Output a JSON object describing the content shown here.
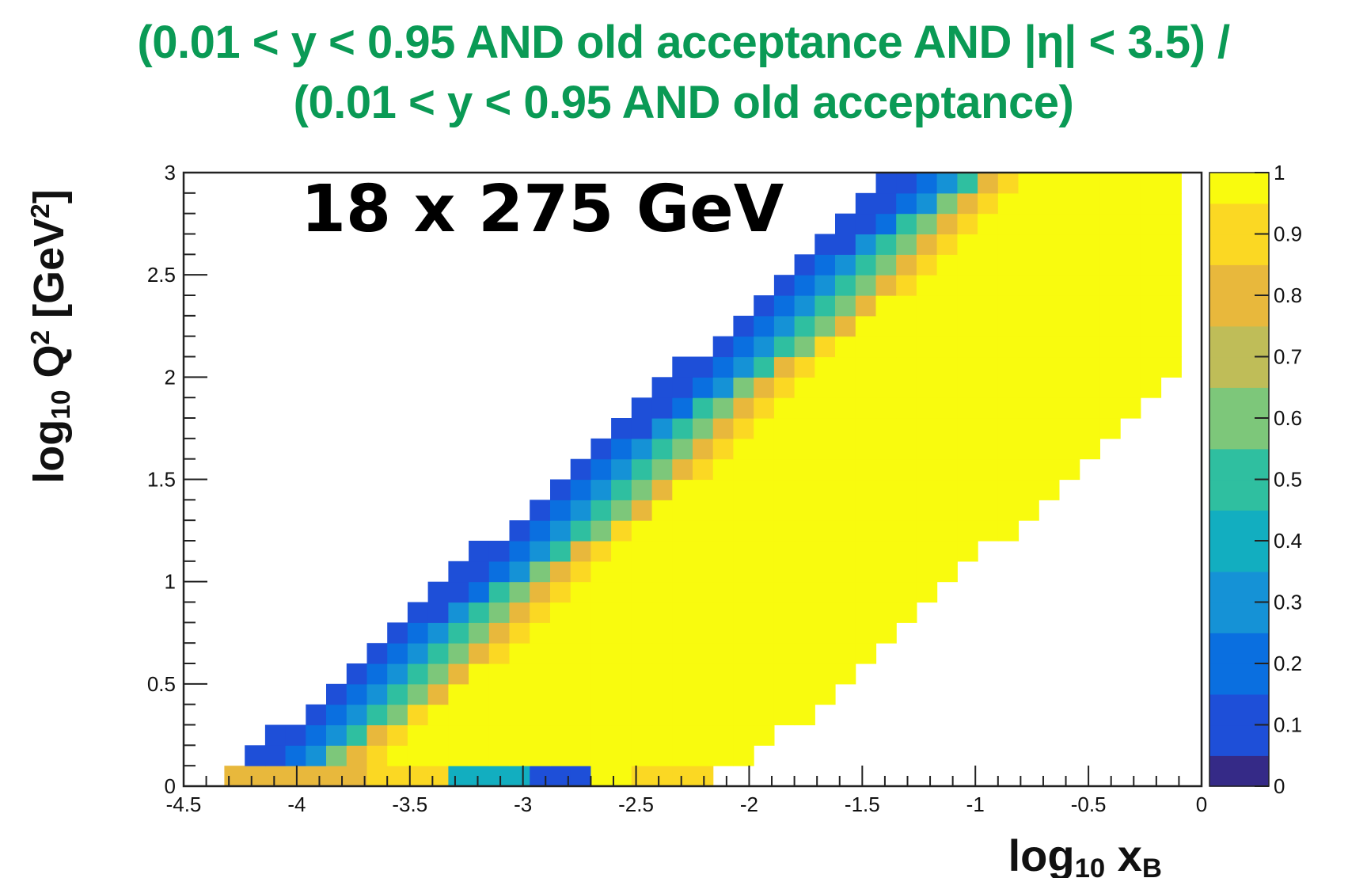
{
  "chart_data": {
    "type": "heatmap",
    "title_lines": [
      "(0.01 < y < 0.95 AND old acceptance AND |η| < 3.5) /",
      "(0.01 < y < 0.95 AND old acceptance)"
    ],
    "annotation": "18 x 275 GeV",
    "xlabel": {
      "prefix": "log",
      "sub": "10",
      "var": " x",
      "var_sub": "B"
    },
    "ylabel": {
      "prefix": "log",
      "sub": "10",
      "var": " Q",
      "sup": "2",
      "unit": " [GeV",
      "unit_sup": "2",
      "unit_end": "]"
    },
    "xlim": [
      -4.5,
      0
    ],
    "ylim": [
      0,
      3
    ],
    "zlim": [
      0,
      1
    ],
    "x_ticks": [
      "-4.5",
      "-4",
      "-3.5",
      "-3",
      "-2.5",
      "-2",
      "-1.5",
      "-1",
      "-0.5",
      "0"
    ],
    "y_ticks": [
      "0",
      "0.5",
      "1",
      "1.5",
      "2",
      "2.5",
      "3"
    ],
    "z_ticks": [
      "0",
      "0.1",
      "0.2",
      "0.3",
      "0.4",
      "0.5",
      "0.6",
      "0.7",
      "0.8",
      "0.9",
      "1"
    ],
    "bins": {
      "nx": 50,
      "ny": 30
    },
    "region": {
      "description": "filled bins where acceptance ratio defined",
      "upper_edge_x": [
        -4.3,
        -2.15
      ],
      "upper_edge_slope": 1.0,
      "lower_edge_x0": -2.15,
      "lower_edge_slope": 1.0,
      "x_max": -0.1,
      "y_max": 3.0,
      "fully_accepted_value": 1.0
    },
    "edge_values": [
      0.05,
      0.15,
      0.3,
      0.45,
      0.6,
      0.75,
      0.85
    ],
    "bottom_row_values": [
      {
        "x_range": [
          -4.3,
          -3.7
        ],
        "value": 0.8
      },
      {
        "x_range": [
          -3.7,
          -3.35
        ],
        "value": 0.85
      },
      {
        "x_range": [
          -3.35,
          -3.0
        ],
        "value": 0.35
      },
      {
        "x_range": [
          -3.0,
          -2.7
        ],
        "value": 0.1
      },
      {
        "x_range": [
          -2.5,
          -2.2
        ],
        "value": 0.85
      }
    ],
    "palette": [
      "#352a87",
      "#1e4fd8",
      "#0a6fe0",
      "#1592d6",
      "#12aec0",
      "#2fbfa0",
      "#7dc77a",
      "#bfbd58",
      "#e8b83c",
      "#fbd823",
      "#f9fb0e"
    ]
  }
}
